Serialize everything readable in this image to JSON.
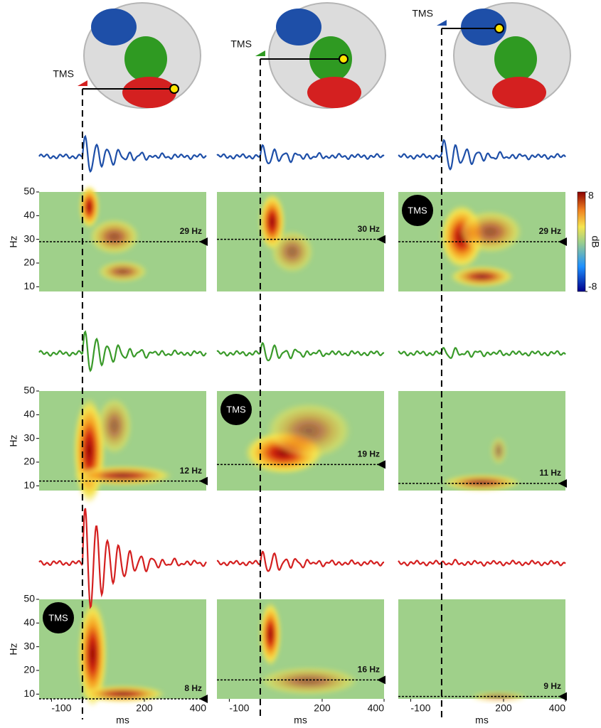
{
  "brains": [
    {
      "label": "TMS"
    },
    {
      "label": "TMS"
    },
    {
      "label": "TMS"
    }
  ],
  "colorbar": {
    "label": "dB",
    "lim": [
      -8,
      8
    ],
    "ticks": [
      -8,
      8
    ]
  },
  "x_axis": {
    "label": "ms",
    "xlim": [
      -140,
      400
    ],
    "xticks": [
      -100,
      200,
      400
    ]
  },
  "y_axis": {
    "label": "Hz",
    "ylim": [
      8,
      50
    ],
    "yticks": [
      10,
      20,
      30,
      40,
      50
    ]
  },
  "rows": [
    {
      "panels": [
        {
          "peak": 29,
          "peak_label": "29 Hz"
        },
        {
          "peak": 30,
          "peak_label": "30 Hz"
        },
        {
          "peak": 29,
          "peak_label": "29 Hz",
          "badge": "TMS"
        }
      ]
    },
    {
      "panels": [
        {
          "peak": 12,
          "peak_label": "12 Hz"
        },
        {
          "peak": 19,
          "peak_label": "19 Hz",
          "badge": "TMS"
        },
        {
          "peak": 11,
          "peak_label": "11 Hz"
        }
      ]
    },
    {
      "panels": [
        {
          "peak": 8,
          "peak_label": "8 Hz",
          "badge": "TMS"
        },
        {
          "peak": 16,
          "peak_label": "16 Hz"
        },
        {
          "peak": 9,
          "peak_label": "9 Hz"
        }
      ]
    }
  ]
}
